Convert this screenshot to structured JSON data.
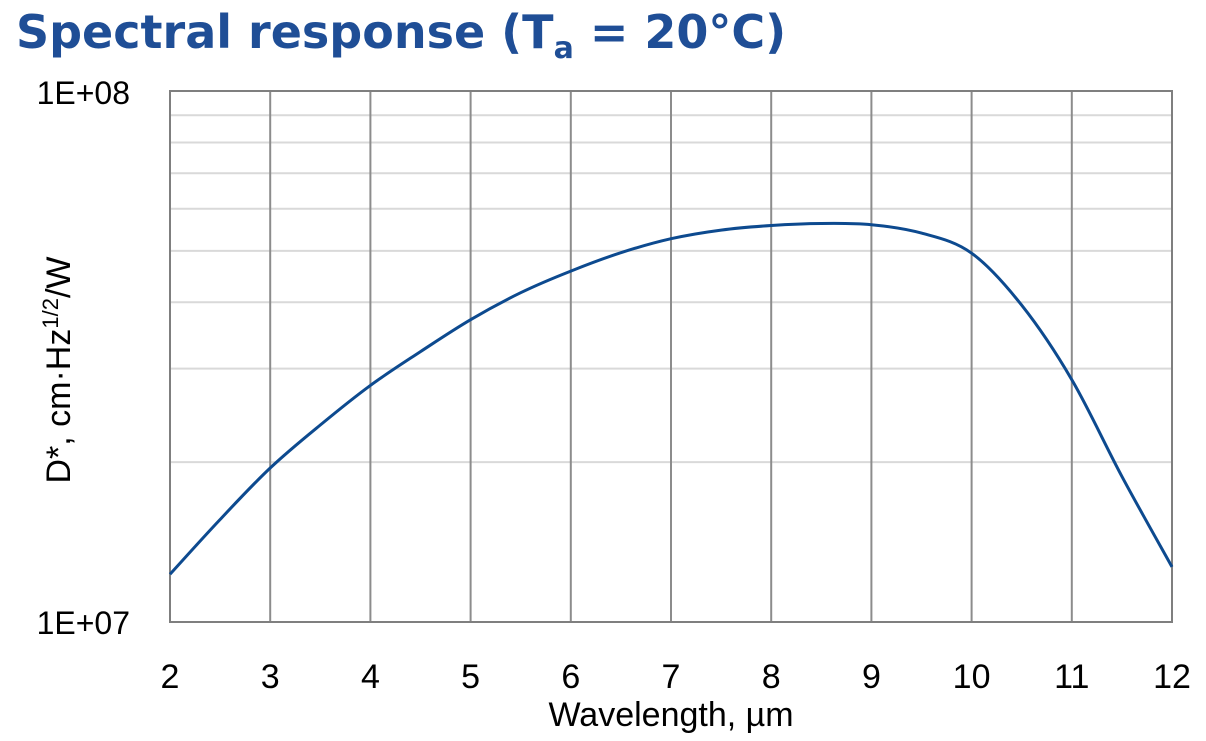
{
  "chart_data": {
    "type": "line",
    "title_main": "Spectral response (T",
    "title_sub": "a",
    "title_rest": " = 20°C)",
    "xlabel": "Wavelength, µm",
    "ylabel_main": "D*, cm·Hz",
    "ylabel_sup": "1/2",
    "ylabel_rest": "/W",
    "xlim": [
      2,
      12
    ],
    "ylim": [
      10000000,
      100000000
    ],
    "yscale": "log",
    "x_ticks": [
      2,
      3,
      4,
      5,
      6,
      7,
      8,
      9,
      10,
      11,
      12
    ],
    "x_tick_labels": [
      "2",
      "3",
      "4",
      "5",
      "6",
      "7",
      "8",
      "9",
      "10",
      "11",
      "12"
    ],
    "y_tick_labels": [
      "1E+08",
      "1E+07"
    ],
    "y_minor_gridlines": [
      20000000,
      30000000,
      40000000,
      50000000,
      60000000,
      70000000,
      80000000,
      90000000
    ],
    "grid": true,
    "line_color": "#0d4a8f",
    "title_color": "#1f4e96",
    "series": [
      {
        "name": "D*",
        "x": [
          2,
          2.5,
          3,
          3.5,
          4,
          4.5,
          5,
          5.5,
          6,
          6.5,
          7,
          7.5,
          8,
          8.5,
          9,
          9.5,
          10,
          10.5,
          11,
          11.5,
          12
        ],
        "y": [
          12300000,
          15600000,
          19500000,
          23500000,
          27900000,
          32300000,
          37100000,
          41700000,
          45800000,
          49600000,
          52700000,
          54700000,
          55800000,
          56300000,
          56000000,
          54000000,
          49500000,
          39500000,
          28600000,
          18800000,
          12700000
        ]
      }
    ]
  }
}
